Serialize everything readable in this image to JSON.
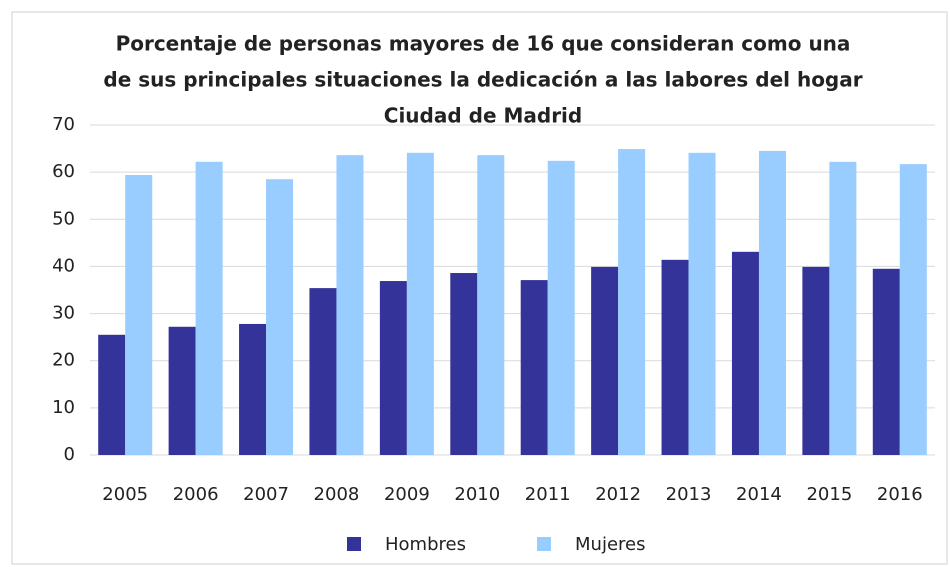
{
  "chart_data": {
    "type": "bar",
    "title": [
      "Porcentaje de personas mayores de 16 que consideran como una",
      "de sus principales situaciones la dedicación a las labores del hogar",
      "Ciudad de Madrid"
    ],
    "categories": [
      "2005",
      "2006",
      "2007",
      "2008",
      "2009",
      "2010",
      "2011",
      "2012",
      "2013",
      "2014",
      "2015",
      "2016"
    ],
    "series": [
      {
        "name": "Hombres",
        "color": "#333399",
        "values": [
          25.5,
          27.2,
          27.8,
          35.4,
          36.9,
          38.6,
          37.1,
          39.9,
          41.4,
          43.1,
          39.9,
          39.5
        ]
      },
      {
        "name": "Mujeres",
        "color": "#99ccff",
        "values": [
          59.4,
          62.2,
          58.5,
          63.6,
          64.1,
          63.6,
          62.4,
          64.9,
          64.1,
          64.5,
          62.2,
          61.7
        ]
      }
    ],
    "ylim": [
      0,
      70
    ],
    "yticks": [
      0,
      10,
      20,
      30,
      40,
      50,
      60,
      70
    ],
    "grid": true,
    "legend": "bottom"
  }
}
